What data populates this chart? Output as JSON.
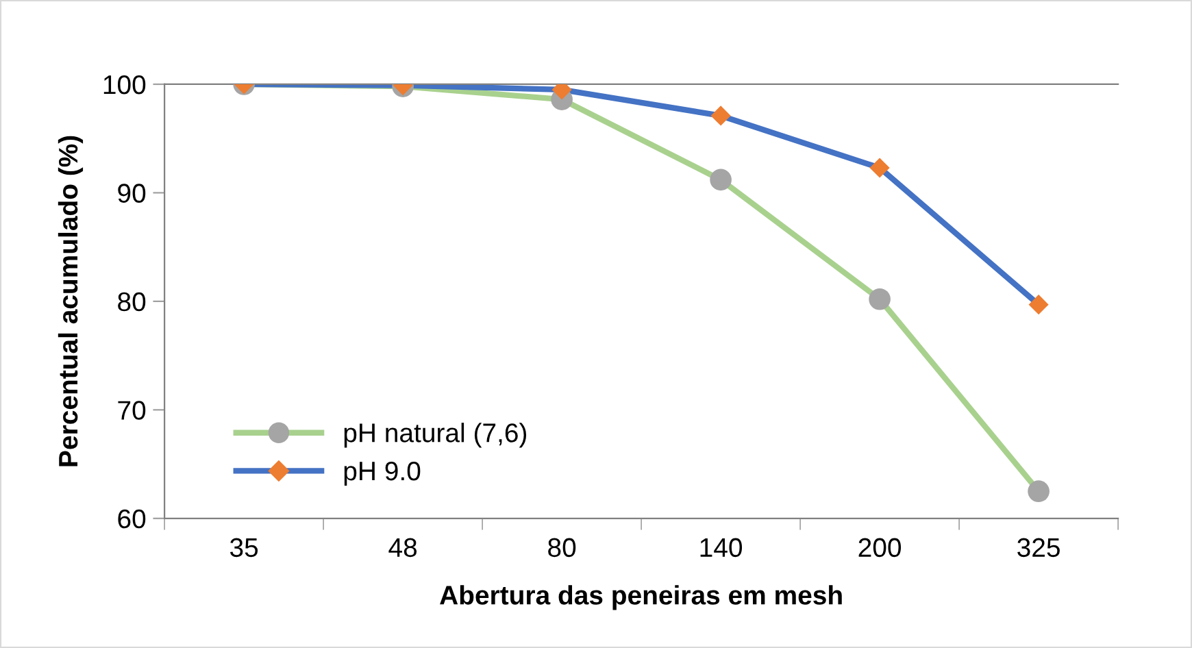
{
  "chart_data": {
    "type": "line",
    "xlabel": "Abertura das peneiras em mesh",
    "ylabel": "Percentual acumulado (%)",
    "categories": [
      "35",
      "48",
      "80",
      "140",
      "200",
      "325"
    ],
    "series": [
      {
        "name": "pH natural (7,6)",
        "color": "#a9d18e",
        "marker": "circle",
        "colors": [
          "#a5a5a5",
          "#a5a5a5",
          "#a5a5a5",
          "#a5a5a5",
          "#a5a5a5",
          "#a5a5a5"
        ],
        "values": [
          100,
          99.8,
          98.6,
          91.2,
          80.2,
          62.5
        ]
      },
      {
        "name": "pH 9.0",
        "color": "#4472c4",
        "marker": "diamond",
        "colors": [
          "#ed7d31",
          "#ed7d31",
          "#ed7d31",
          "#ed7d31",
          "#ed7d31",
          "#ed7d31"
        ],
        "values": [
          100,
          99.9,
          99.5,
          97.1,
          92.3,
          79.7
        ]
      }
    ],
    "ylim": [
      60,
      100
    ],
    "yticks": [
      60,
      70,
      80,
      90,
      100
    ],
    "grid": false,
    "legend": "bottom left",
    "line_style": "solid"
  }
}
